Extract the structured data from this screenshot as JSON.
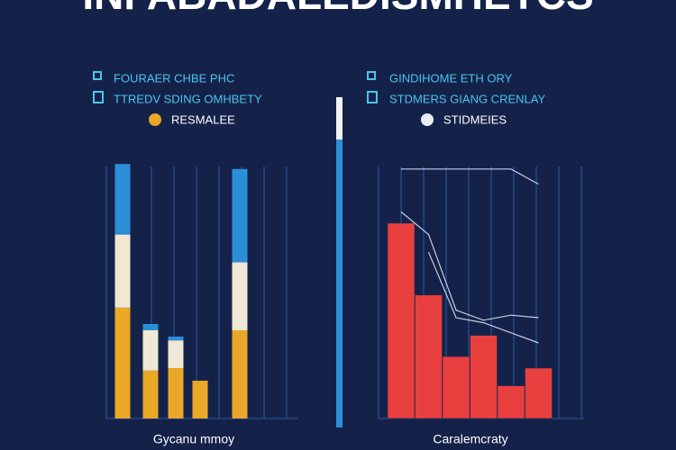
{
  "title": "INFABADALEDISMHETCS",
  "chart_data": [
    {
      "type": "bar",
      "stacked": true,
      "title": "FOURAER CHBE PHC",
      "subtitle": "TTREDV SDING OMHBETY",
      "xlabel": "Gycanu mmoy",
      "categories": [
        null,
        null,
        null,
        null,
        null
      ],
      "ylim": [
        0,
        100
      ],
      "grid": true,
      "series": [
        {
          "name": "RESMALEE",
          "color": "#e9a826",
          "values": [
            44,
            19,
            20,
            15,
            35
          ]
        },
        {
          "color": "#efe8d4",
          "values": [
            29,
            16,
            11,
            0,
            27
          ]
        },
        {
          "color": "#2b8fd8",
          "values": [
            28,
            2.5,
            1.5,
            0,
            37
          ]
        }
      ]
    },
    {
      "type": "combo",
      "title": "GINDIHOME ETH ORY",
      "subtitle": "STDMERS GIANG CRENLAY",
      "xlabel": "Caralemcraty",
      "categories": [
        null,
        null,
        null,
        null,
        null,
        null
      ],
      "ylim": [
        0,
        100
      ],
      "grid": true,
      "series": [
        {
          "mark": "bar",
          "color": "#e8403f",
          "values": [
            77.5,
            49,
            24.6,
            33,
            13,
            20
          ]
        },
        {
          "name": "STIDMEIES",
          "mark": "line",
          "color": "#e8ecf4",
          "values": [
            99,
            99,
            99,
            99,
            99,
            93
          ]
        },
        {
          "mark": "line",
          "color": "#e8ecf4",
          "values": [
            82,
            73,
            43,
            39,
            41,
            40
          ]
        },
        {
          "mark": "line",
          "color": "#e8ecf4",
          "values": [
            null,
            66,
            40,
            38,
            34,
            30
          ]
        }
      ]
    }
  ]
}
